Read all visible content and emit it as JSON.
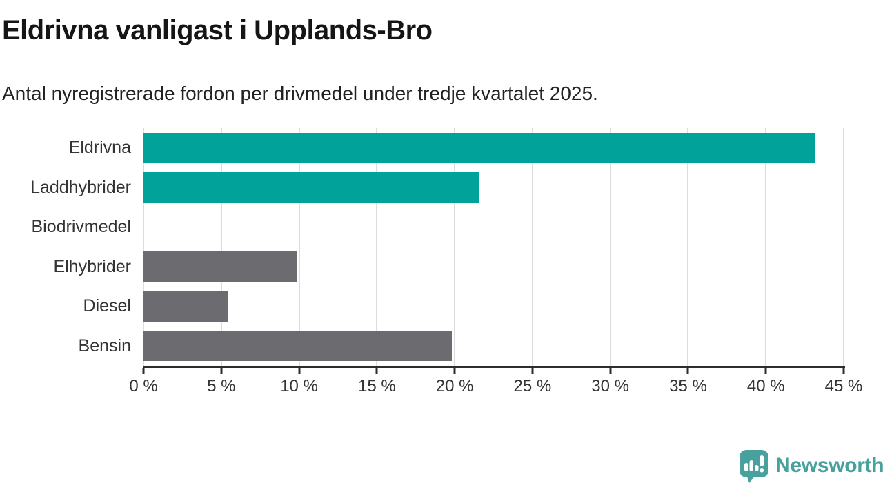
{
  "header": {
    "title": "Eldrivna vanligast i Upplands-Bro",
    "subtitle": "Antal nyregistrerade fordon per drivmedel under tredje kvartalet 2025."
  },
  "chart_data": {
    "type": "bar",
    "orientation": "horizontal",
    "title": "Eldrivna vanligast i Upplands-Bro",
    "subtitle": "Antal nyregistrerade fordon per drivmedel under tredje kvartalet 2025.",
    "categories": [
      "Eldrivna",
      "Laddhybrider",
      "Biodrivmedel",
      "Elhybrider",
      "Diesel",
      "Bensin"
    ],
    "values": [
      43.2,
      21.6,
      0,
      9.9,
      5.4,
      19.8
    ],
    "unit": "%",
    "bar_colors": [
      "#00A29A",
      "#00A29A",
      "#00A29A",
      "#6C6C70",
      "#6C6C70",
      "#6C6C70"
    ],
    "xlim": [
      0,
      45
    ],
    "tick_step": 5,
    "tick_labels": [
      "0 %",
      "5 %",
      "10 %",
      "15 %",
      "20 %",
      "25 %",
      "30 %",
      "35 %",
      "40 %",
      "45 %"
    ],
    "grid": true,
    "legend": "none"
  },
  "footer": {
    "brand": "Newsworthy"
  },
  "colors": {
    "teal": "#00A29A",
    "gray": "#6C6C70",
    "grid": "#DCDCDC",
    "axis": "#2D2D2D",
    "text": "#333333",
    "brand_teal": "#48A19C"
  }
}
